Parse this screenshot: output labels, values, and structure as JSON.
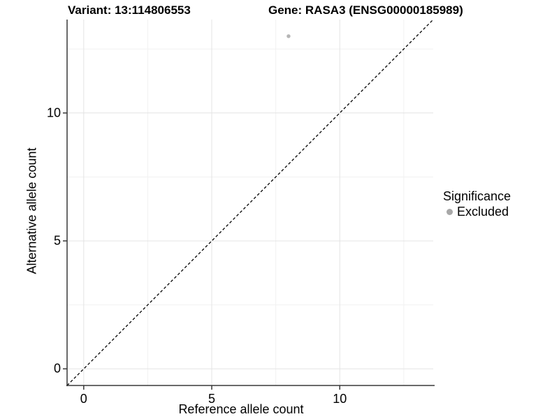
{
  "chart_data": {
    "type": "scatter",
    "title_left": "Variant: 13:114806553",
    "title_right": "Gene: RASA3 (ENSG00000185989)",
    "xlabel": "Reference allele count",
    "ylabel": "Alternative allele count",
    "xlim": [
      -0.65,
      13.65
    ],
    "ylim": [
      -0.65,
      13.65
    ],
    "x_ticks": [
      0,
      5,
      10
    ],
    "y_ticks": [
      0,
      5,
      10
    ],
    "x_minor_ticks": [
      2.5,
      7.5,
      12.5
    ],
    "y_minor_ticks": [
      2.5,
      7.5,
      12.5
    ],
    "grid": true,
    "legend_position": "right",
    "points": [
      {
        "x": 8,
        "y": 13,
        "series": "Excluded",
        "color": "#b5b5b5",
        "radius": 2.7
      }
    ],
    "reference_line": {
      "kind": "identity",
      "slope": 1,
      "intercept": 0,
      "style": "dashed",
      "color": "#000000"
    },
    "legend": {
      "title": "Significance",
      "items": [
        {
          "label": "Excluded",
          "color": "#a8a8a8",
          "marker": "circle"
        }
      ]
    },
    "colors": {
      "background": "#ffffff",
      "grid_major": "#e4e4e4",
      "grid_minor": "#f1f1f1",
      "axis_line": "#383838",
      "text": "#000000"
    }
  }
}
